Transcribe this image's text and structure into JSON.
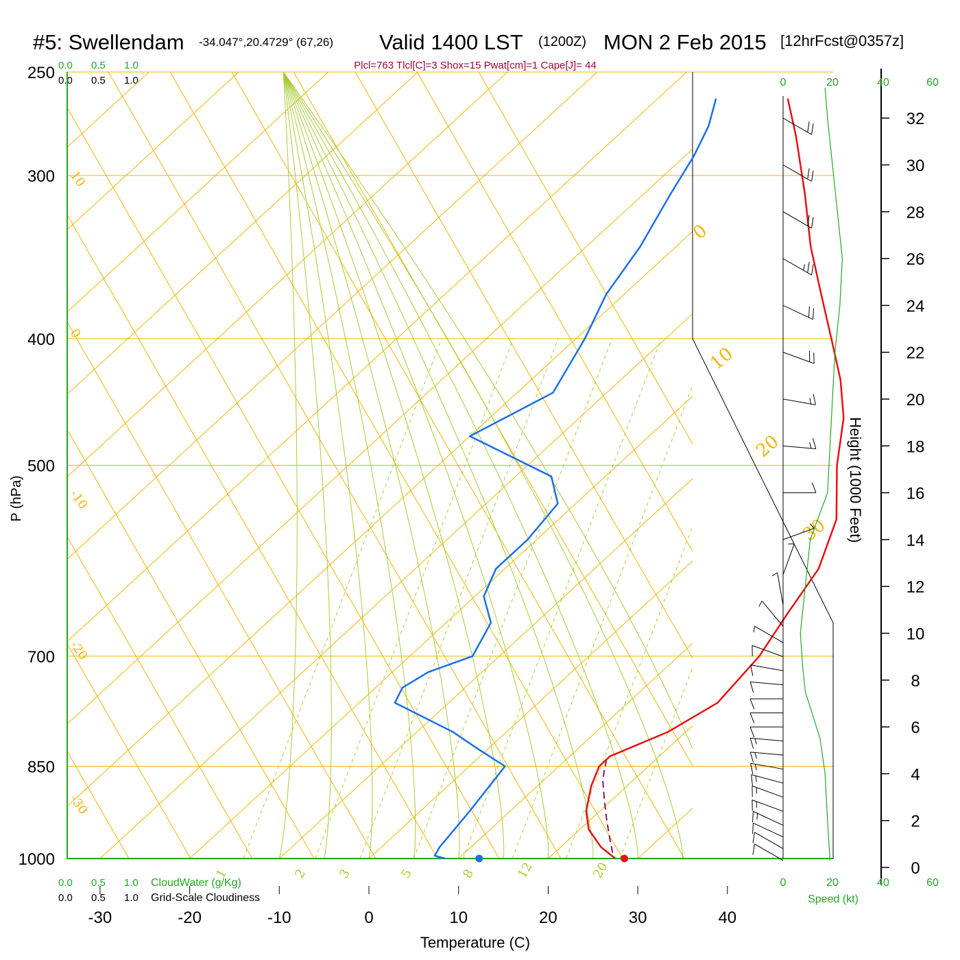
{
  "header": {
    "station": "#5: Swellendam",
    "coords": "-34.047°,20.4729° (67,26)",
    "valid": "Valid 1400 LST",
    "utc": "(1200Z)",
    "date": "MON 2 Feb 2015",
    "forecast": "[12hrFcst@0357z]",
    "params": "Plcl=763 Tlcl[C]=3 Shox=15 Pwat[cm]=1 Cape[J]= 44"
  },
  "cloud_scale": {
    "ticks_top": [
      "0.0",
      "0.5",
      "1.0"
    ],
    "ticks_bottom": [
      "0.0",
      "0.5",
      "1.0"
    ],
    "cloudwater_label": "CloudWater (g/Kg)",
    "cloudiness_label": "Grid-Scale Cloudiness"
  },
  "speed_scale": {
    "ticks": [
      "0",
      "20",
      "40",
      "60"
    ],
    "label": "Speed (kt)"
  },
  "colors": {
    "isobar": "#f2b400",
    "temperature": "#e81010",
    "dewpoint": "#1a6ee8",
    "parcel": "#7a0060",
    "dry_adiabat": "#a6cc33",
    "mixing_ratio": "#a6cc33",
    "speed_line": "#1fa81f",
    "cloud_axis": "#1fa81f",
    "params_text": "#a1004a"
  },
  "chart_data": {
    "type": "line",
    "subtype": "skew-T log-P sounding",
    "xlabel": "Temperature (C)",
    "ylabel": "P (hPa)",
    "y2label": "Height (1000 Feet)",
    "x_ticks": [
      "-30",
      "-20",
      "-10",
      "0",
      "10",
      "20",
      "30",
      "40"
    ],
    "y_ticks": [
      "250",
      "300",
      "400",
      "500",
      "700",
      "850",
      "1000"
    ],
    "height_ticks": [
      "0",
      "2",
      "4",
      "6",
      "8",
      "10",
      "12",
      "14",
      "16",
      "18",
      "20",
      "22",
      "24",
      "26",
      "28",
      "30",
      "32"
    ],
    "height_tick_values": [
      0,
      2,
      4,
      6,
      8,
      10,
      12,
      14,
      16,
      18,
      20,
      22,
      24,
      26,
      28,
      30,
      32
    ],
    "xlim": [
      -34,
      36
    ],
    "ylim": [
      1000,
      250
    ],
    "y_scale": "log",
    "skewed_isotherms": [
      "10",
      "0",
      "-10",
      "-20",
      "-30",
      "0",
      "10",
      "20",
      "30"
    ],
    "isotherm_labels_left": [
      "10",
      "0",
      "-10",
      "-20",
      "-30"
    ],
    "isotherm_labels_right": [
      "0",
      "10",
      "20",
      "30"
    ],
    "mixing_ratio_labels": [
      "1",
      "2",
      "3",
      "5",
      "8",
      "12",
      "20"
    ],
    "series": [
      {
        "key": "temperature",
        "points": [
          {
            "p": 1000,
            "t": 27.5
          },
          {
            "p": 980,
            "t": 24.5
          },
          {
            "p": 950,
            "t": 21
          },
          {
            "p": 920,
            "t": 18.5
          },
          {
            "p": 880,
            "t": 16
          },
          {
            "p": 850,
            "t": 14.5
          },
          {
            "p": 835,
            "t": 14.5
          },
          {
            "p": 800,
            "t": 18
          },
          {
            "p": 760,
            "t": 20
          },
          {
            "p": 700,
            "t": 19
          },
          {
            "p": 650,
            "t": 17
          },
          {
            "p": 600,
            "t": 15
          },
          {
            "p": 550,
            "t": 11
          },
          {
            "p": 500,
            "t": 4.5
          },
          {
            "p": 460,
            "t": -0.5
          },
          {
            "p": 430,
            "t": -5.5
          },
          {
            "p": 400,
            "t": -11.5
          },
          {
            "p": 370,
            "t": -18
          },
          {
            "p": 340,
            "t": -25
          },
          {
            "p": 310,
            "t": -32
          },
          {
            "p": 280,
            "t": -40
          },
          {
            "p": 262,
            "t": -45.5
          }
        ]
      },
      {
        "key": "dewpoint",
        "points": [
          {
            "p": 1000,
            "t": 8.5
          },
          {
            "p": 995,
            "t": 7
          },
          {
            "p": 980,
            "t": 6.5
          },
          {
            "p": 920,
            "t": 5.5
          },
          {
            "p": 850,
            "t": 4
          },
          {
            "p": 840,
            "t": 2
          },
          {
            "p": 820,
            "t": -2
          },
          {
            "p": 800,
            "t": -6
          },
          {
            "p": 760,
            "t": -16
          },
          {
            "p": 740,
            "t": -17
          },
          {
            "p": 720,
            "t": -16
          },
          {
            "p": 700,
            "t": -13
          },
          {
            "p": 660,
            "t": -15
          },
          {
            "p": 630,
            "t": -19
          },
          {
            "p": 600,
            "t": -21
          },
          {
            "p": 570,
            "t": -21
          },
          {
            "p": 535,
            "t": -22
          },
          {
            "p": 510,
            "t": -26
          },
          {
            "p": 475,
            "t": -40
          },
          {
            "p": 440,
            "t": -36
          },
          {
            "p": 400,
            "t": -39
          },
          {
            "p": 370,
            "t": -42
          },
          {
            "p": 340,
            "t": -44
          },
          {
            "p": 310,
            "t": -47
          },
          {
            "p": 290,
            "t": -49
          },
          {
            "p": 275,
            "t": -51
          },
          {
            "p": 262,
            "t": -53.5
          }
        ]
      },
      {
        "key": "parcel",
        "points": [
          {
            "p": 990,
            "t": 26.5
          },
          {
            "p": 960,
            "t": 24
          },
          {
            "p": 930,
            "t": 21.5
          },
          {
            "p": 900,
            "t": 19
          },
          {
            "p": 870,
            "t": 16.5
          },
          {
            "p": 840,
            "t": 14.5
          }
        ]
      }
    ],
    "surface_markers": [
      {
        "key": "surface_temperature",
        "p": 1000,
        "t": 28.5
      },
      {
        "key": "surface_dewpoint",
        "p": 1000,
        "t": 12.3
      }
    ],
    "speed_profile_kt": [
      {
        "h": 0.3,
        "s": 19
      },
      {
        "h": 2,
        "s": 18
      },
      {
        "h": 4,
        "s": 17
      },
      {
        "h": 5.5,
        "s": 15
      },
      {
        "h": 6.5,
        "s": 12
      },
      {
        "h": 7.5,
        "s": 9
      },
      {
        "h": 8.5,
        "s": 8
      },
      {
        "h": 10,
        "s": 7
      },
      {
        "h": 12,
        "s": 9
      },
      {
        "h": 14,
        "s": 11
      },
      {
        "h": 16,
        "s": 18
      },
      {
        "h": 18,
        "s": 19
      },
      {
        "h": 20,
        "s": 20
      },
      {
        "h": 22,
        "s": 21
      },
      {
        "h": 24,
        "s": 23
      },
      {
        "h": 26,
        "s": 24
      },
      {
        "h": 28,
        "s": 22
      },
      {
        "h": 30,
        "s": 20
      },
      {
        "h": 32,
        "s": 18
      },
      {
        "h": 33.3,
        "s": 17
      }
    ],
    "wind_barbs": [
      {
        "h": 0.3,
        "dir": 120,
        "spd": 10
      },
      {
        "h": 0.8,
        "dir": 120,
        "spd": 10
      },
      {
        "h": 1.3,
        "dir": 115,
        "spd": 10
      },
      {
        "h": 1.8,
        "dir": 115,
        "spd": 15
      },
      {
        "h": 2.4,
        "dir": 110,
        "spd": 15
      },
      {
        "h": 3.0,
        "dir": 110,
        "spd": 15
      },
      {
        "h": 3.6,
        "dir": 105,
        "spd": 15
      },
      {
        "h": 4.2,
        "dir": 100,
        "spd": 15
      },
      {
        "h": 4.8,
        "dir": 95,
        "spd": 15
      },
      {
        "h": 5.4,
        "dir": 95,
        "spd": 15
      },
      {
        "h": 6.0,
        "dir": 90,
        "spd": 10
      },
      {
        "h": 6.6,
        "dir": 90,
        "spd": 10
      },
      {
        "h": 7.2,
        "dir": 90,
        "spd": 10
      },
      {
        "h": 7.8,
        "dir": 95,
        "spd": 10
      },
      {
        "h": 8.4,
        "dir": 100,
        "spd": 10
      },
      {
        "h": 9.0,
        "dir": 110,
        "spd": 10
      },
      {
        "h": 9.6,
        "dir": 120,
        "spd": 5
      },
      {
        "h": 10.3,
        "dir": 140,
        "spd": 5
      },
      {
        "h": 11.2,
        "dir": 170,
        "spd": 5
      },
      {
        "h": 12.5,
        "dir": 200,
        "spd": 5
      },
      {
        "h": 14.0,
        "dir": 250,
        "spd": 5
      },
      {
        "h": 16.0,
        "dir": 270,
        "spd": 10
      },
      {
        "h": 18.0,
        "dir": 275,
        "spd": 15
      },
      {
        "h": 20.0,
        "dir": 280,
        "spd": 15
      },
      {
        "h": 22.0,
        "dir": 290,
        "spd": 20
      },
      {
        "h": 24.0,
        "dir": 295,
        "spd": 20
      },
      {
        "h": 26.0,
        "dir": 300,
        "spd": 25
      },
      {
        "h": 28.0,
        "dir": 300,
        "spd": 20
      },
      {
        "h": 30.0,
        "dir": 300,
        "spd": 20
      },
      {
        "h": 32.0,
        "dir": 300,
        "spd": 20
      }
    ]
  }
}
